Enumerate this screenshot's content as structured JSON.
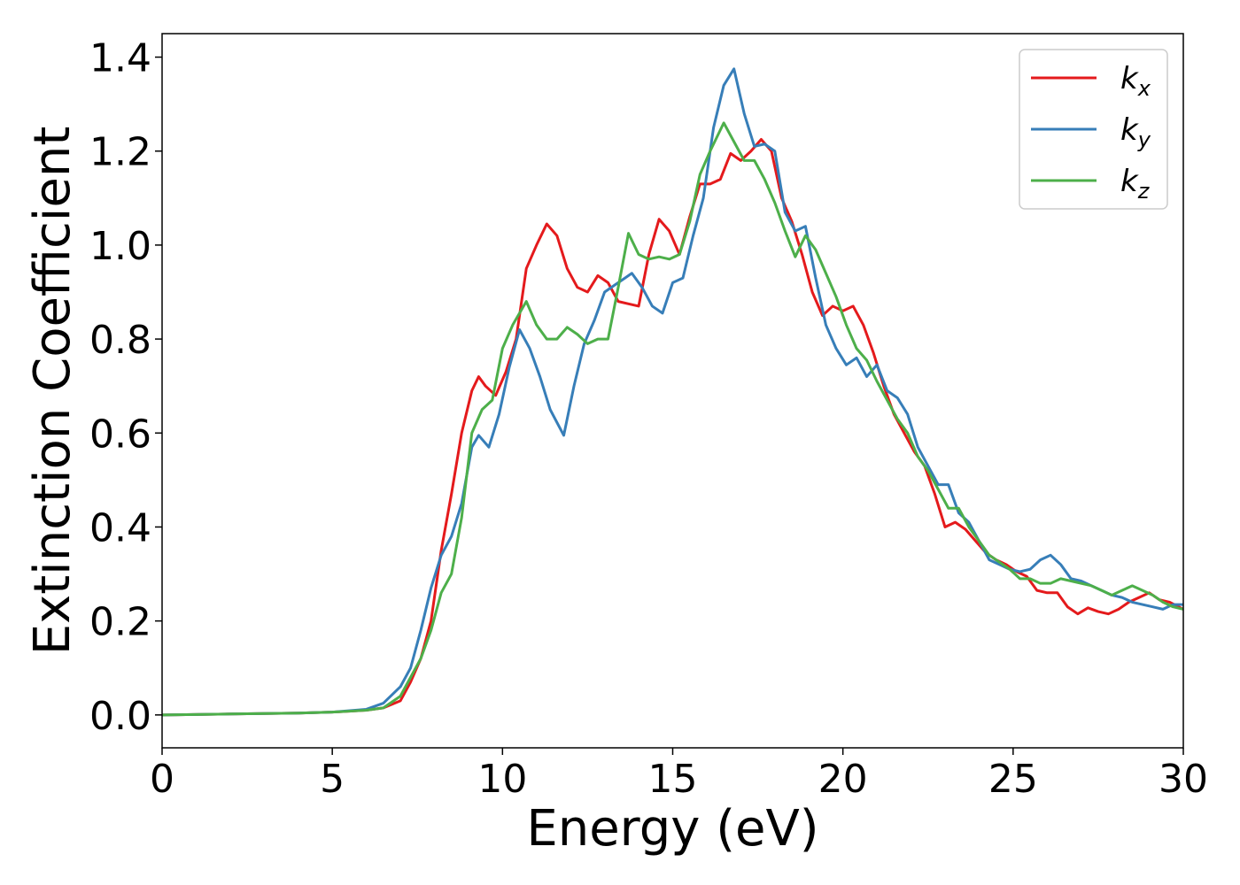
{
  "chart_data": {
    "type": "line",
    "title": "",
    "xlabel": "Energy (eV)",
    "ylabel": "Extinction Coefficient",
    "xlim": [
      0,
      30
    ],
    "ylim": [
      -0.07,
      1.45
    ],
    "x_ticks": [
      0,
      5,
      10,
      15,
      20,
      25,
      30
    ],
    "x_tick_labels": [
      "0",
      "5",
      "10",
      "15",
      "20",
      "25",
      "30"
    ],
    "y_ticks": [
      0.0,
      0.2,
      0.4,
      0.6,
      0.8,
      1.0,
      1.2,
      1.4
    ],
    "y_tick_labels": [
      "0.0",
      "0.2",
      "0.4",
      "0.6",
      "0.8",
      "1.0",
      "1.2",
      "1.4"
    ],
    "grid": false,
    "legend_position": "top-right",
    "series": [
      {
        "name": "k",
        "subscript": "x",
        "color": "#e41a1c",
        "points": [
          [
            0,
            0
          ],
          [
            2,
            0.002
          ],
          [
            4,
            0.004
          ],
          [
            5,
            0.006
          ],
          [
            6,
            0.01
          ],
          [
            6.5,
            0.015
          ],
          [
            7,
            0.03
          ],
          [
            7.3,
            0.07
          ],
          [
            7.6,
            0.12
          ],
          [
            7.9,
            0.2
          ],
          [
            8.2,
            0.35
          ],
          [
            8.5,
            0.47
          ],
          [
            8.8,
            0.6
          ],
          [
            9.1,
            0.69
          ],
          [
            9.3,
            0.72
          ],
          [
            9.5,
            0.7
          ],
          [
            9.8,
            0.68
          ],
          [
            10.1,
            0.73
          ],
          [
            10.4,
            0.8
          ],
          [
            10.7,
            0.95
          ],
          [
            11,
            1.0
          ],
          [
            11.3,
            1.045
          ],
          [
            11.6,
            1.02
          ],
          [
            11.9,
            0.95
          ],
          [
            12.2,
            0.91
          ],
          [
            12.5,
            0.9
          ],
          [
            12.8,
            0.935
          ],
          [
            13.1,
            0.92
          ],
          [
            13.4,
            0.88
          ],
          [
            13.7,
            0.875
          ],
          [
            14,
            0.87
          ],
          [
            14.3,
            0.98
          ],
          [
            14.6,
            1.055
          ],
          [
            14.9,
            1.03
          ],
          [
            15.2,
            0.98
          ],
          [
            15.5,
            1.06
          ],
          [
            15.8,
            1.13
          ],
          [
            16.1,
            1.13
          ],
          [
            16.4,
            1.14
          ],
          [
            16.7,
            1.195
          ],
          [
            17,
            1.18
          ],
          [
            17.3,
            1.2
          ],
          [
            17.6,
            1.225
          ],
          [
            17.9,
            1.2
          ],
          [
            18.2,
            1.1
          ],
          [
            18.5,
            1.05
          ],
          [
            18.8,
            0.98
          ],
          [
            19.1,
            0.9
          ],
          [
            19.4,
            0.85
          ],
          [
            19.7,
            0.87
          ],
          [
            20,
            0.86
          ],
          [
            20.3,
            0.87
          ],
          [
            20.6,
            0.83
          ],
          [
            20.9,
            0.77
          ],
          [
            21.2,
            0.7
          ],
          [
            21.5,
            0.64
          ],
          [
            21.8,
            0.6
          ],
          [
            22.1,
            0.56
          ],
          [
            22.4,
            0.53
          ],
          [
            22.7,
            0.47
          ],
          [
            23,
            0.4
          ],
          [
            23.3,
            0.41
          ],
          [
            23.6,
            0.395
          ],
          [
            23.9,
            0.37
          ],
          [
            24.2,
            0.345
          ],
          [
            24.5,
            0.33
          ],
          [
            24.8,
            0.32
          ],
          [
            25.1,
            0.305
          ],
          [
            25.4,
            0.295
          ],
          [
            25.7,
            0.265
          ],
          [
            26,
            0.26
          ],
          [
            26.3,
            0.26
          ],
          [
            26.6,
            0.23
          ],
          [
            26.9,
            0.215
          ],
          [
            27.2,
            0.228
          ],
          [
            27.5,
            0.22
          ],
          [
            27.8,
            0.215
          ],
          [
            28.1,
            0.225
          ],
          [
            28.4,
            0.24
          ],
          [
            28.7,
            0.25
          ],
          [
            29,
            0.26
          ],
          [
            29.3,
            0.245
          ],
          [
            29.6,
            0.24
          ],
          [
            30,
            0.225
          ]
        ]
      },
      {
        "name": "k",
        "subscript": "y",
        "color": "#377eb8",
        "points": [
          [
            0,
            0
          ],
          [
            2,
            0.002
          ],
          [
            4,
            0.004
          ],
          [
            5,
            0.006
          ],
          [
            6,
            0.012
          ],
          [
            6.5,
            0.025
          ],
          [
            7,
            0.06
          ],
          [
            7.3,
            0.1
          ],
          [
            7.6,
            0.18
          ],
          [
            7.9,
            0.27
          ],
          [
            8.2,
            0.34
          ],
          [
            8.5,
            0.38
          ],
          [
            8.8,
            0.45
          ],
          [
            9.1,
            0.57
          ],
          [
            9.3,
            0.595
          ],
          [
            9.6,
            0.57
          ],
          [
            9.9,
            0.64
          ],
          [
            10.2,
            0.74
          ],
          [
            10.5,
            0.82
          ],
          [
            10.8,
            0.78
          ],
          [
            11.1,
            0.72
          ],
          [
            11.4,
            0.65
          ],
          [
            11.8,
            0.595
          ],
          [
            12.1,
            0.7
          ],
          [
            12.4,
            0.79
          ],
          [
            12.7,
            0.84
          ],
          [
            13,
            0.9
          ],
          [
            13.3,
            0.915
          ],
          [
            13.6,
            0.93
          ],
          [
            13.8,
            0.94
          ],
          [
            14.1,
            0.91
          ],
          [
            14.4,
            0.87
          ],
          [
            14.7,
            0.855
          ],
          [
            15,
            0.92
          ],
          [
            15.3,
            0.93
          ],
          [
            15.6,
            1.02
          ],
          [
            15.9,
            1.1
          ],
          [
            16.2,
            1.25
          ],
          [
            16.5,
            1.34
          ],
          [
            16.8,
            1.375
          ],
          [
            17.1,
            1.28
          ],
          [
            17.4,
            1.21
          ],
          [
            17.7,
            1.215
          ],
          [
            18,
            1.2
          ],
          [
            18.3,
            1.07
          ],
          [
            18.6,
            1.03
          ],
          [
            18.9,
            1.04
          ],
          [
            19.2,
            0.93
          ],
          [
            19.5,
            0.83
          ],
          [
            19.8,
            0.78
          ],
          [
            20.1,
            0.745
          ],
          [
            20.4,
            0.76
          ],
          [
            20.7,
            0.72
          ],
          [
            21,
            0.745
          ],
          [
            21.3,
            0.69
          ],
          [
            21.6,
            0.675
          ],
          [
            21.9,
            0.64
          ],
          [
            22.2,
            0.57
          ],
          [
            22.5,
            0.53
          ],
          [
            22.8,
            0.49
          ],
          [
            23.1,
            0.49
          ],
          [
            23.4,
            0.43
          ],
          [
            23.7,
            0.41
          ],
          [
            24,
            0.37
          ],
          [
            24.3,
            0.33
          ],
          [
            24.6,
            0.32
          ],
          [
            24.9,
            0.31
          ],
          [
            25.2,
            0.305
          ],
          [
            25.5,
            0.31
          ],
          [
            25.8,
            0.33
          ],
          [
            26.1,
            0.34
          ],
          [
            26.4,
            0.32
          ],
          [
            26.7,
            0.29
          ],
          [
            27,
            0.285
          ],
          [
            27.3,
            0.275
          ],
          [
            27.6,
            0.265
          ],
          [
            27.9,
            0.255
          ],
          [
            28.2,
            0.25
          ],
          [
            28.5,
            0.24
          ],
          [
            28.8,
            0.235
          ],
          [
            29.1,
            0.23
          ],
          [
            29.4,
            0.225
          ],
          [
            29.7,
            0.235
          ],
          [
            30,
            0.235
          ]
        ]
      },
      {
        "name": "k",
        "subscript": "z",
        "color": "#4daf4a",
        "points": [
          [
            0,
            0
          ],
          [
            2,
            0.002
          ],
          [
            4,
            0.004
          ],
          [
            5,
            0.006
          ],
          [
            6,
            0.01
          ],
          [
            6.5,
            0.015
          ],
          [
            7,
            0.04
          ],
          [
            7.3,
            0.08
          ],
          [
            7.6,
            0.12
          ],
          [
            7.9,
            0.18
          ],
          [
            8.2,
            0.26
          ],
          [
            8.5,
            0.3
          ],
          [
            8.8,
            0.42
          ],
          [
            9.1,
            0.6
          ],
          [
            9.4,
            0.65
          ],
          [
            9.7,
            0.67
          ],
          [
            10,
            0.78
          ],
          [
            10.3,
            0.83
          ],
          [
            10.7,
            0.88
          ],
          [
            11,
            0.83
          ],
          [
            11.3,
            0.8
          ],
          [
            11.6,
            0.8
          ],
          [
            11.9,
            0.825
          ],
          [
            12.2,
            0.81
          ],
          [
            12.5,
            0.79
          ],
          [
            12.8,
            0.8
          ],
          [
            13.1,
            0.8
          ],
          [
            13.4,
            0.91
          ],
          [
            13.7,
            1.025
          ],
          [
            14,
            0.98
          ],
          [
            14.3,
            0.97
          ],
          [
            14.6,
            0.975
          ],
          [
            14.9,
            0.97
          ],
          [
            15.2,
            0.98
          ],
          [
            15.5,
            1.05
          ],
          [
            15.8,
            1.15
          ],
          [
            16.1,
            1.2
          ],
          [
            16.5,
            1.26
          ],
          [
            16.8,
            1.22
          ],
          [
            17.1,
            1.18
          ],
          [
            17.4,
            1.18
          ],
          [
            17.7,
            1.14
          ],
          [
            18,
            1.09
          ],
          [
            18.3,
            1.03
          ],
          [
            18.6,
            0.975
          ],
          [
            18.9,
            1.02
          ],
          [
            19.2,
            0.99
          ],
          [
            19.5,
            0.94
          ],
          [
            19.8,
            0.89
          ],
          [
            20.1,
            0.83
          ],
          [
            20.4,
            0.78
          ],
          [
            20.7,
            0.755
          ],
          [
            21,
            0.71
          ],
          [
            21.3,
            0.67
          ],
          [
            21.6,
            0.63
          ],
          [
            21.9,
            0.6
          ],
          [
            22.2,
            0.55
          ],
          [
            22.5,
            0.52
          ],
          [
            22.8,
            0.48
          ],
          [
            23.1,
            0.44
          ],
          [
            23.4,
            0.44
          ],
          [
            23.7,
            0.4
          ],
          [
            24,
            0.37
          ],
          [
            24.3,
            0.34
          ],
          [
            24.6,
            0.325
          ],
          [
            24.9,
            0.31
          ],
          [
            25.2,
            0.29
          ],
          [
            25.5,
            0.29
          ],
          [
            25.8,
            0.28
          ],
          [
            26.1,
            0.28
          ],
          [
            26.4,
            0.29
          ],
          [
            26.7,
            0.285
          ],
          [
            27,
            0.28
          ],
          [
            27.3,
            0.275
          ],
          [
            27.6,
            0.265
          ],
          [
            27.9,
            0.255
          ],
          [
            28.2,
            0.265
          ],
          [
            28.5,
            0.275
          ],
          [
            28.8,
            0.265
          ],
          [
            29.1,
            0.255
          ],
          [
            29.4,
            0.24
          ],
          [
            29.7,
            0.23
          ],
          [
            30,
            0.225
          ]
        ]
      }
    ]
  }
}
